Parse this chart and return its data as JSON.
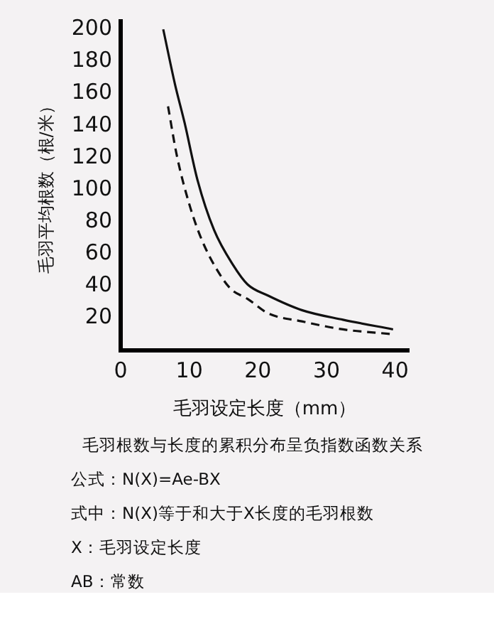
{
  "chart_data": {
    "type": "line",
    "xlabel": "毛羽设定长度（mm）",
    "ylabel": "毛羽平均根数（根/米）",
    "xlim": [
      0,
      42
    ],
    "xticks": [
      0,
      10,
      20,
      30,
      40
    ],
    "ylim": [
      0,
      205
    ],
    "yticks": [
      20,
      40,
      60,
      80,
      100,
      120,
      140,
      160,
      180,
      200
    ],
    "grid": false,
    "legend": false,
    "marker": "none",
    "series": [
      {
        "color": "#111111",
        "line_style": "solid",
        "x": [
          6.2,
          7.9,
          9.3,
          11.2,
          13.6,
          16.4,
          18.5,
          21.5,
          26.4,
          32.4,
          39.7
        ],
        "values": [
          200,
          166,
          142,
          106,
          75,
          53,
          41,
          34,
          25,
          19,
          13
        ]
      },
      {
        "color": "#111111",
        "line_style": "dashed",
        "x": [
          6.9,
          8.2,
          10,
          11.8,
          14.2,
          16.1,
          18.5,
          21.5,
          26.4,
          32.4,
          39.7
        ],
        "values": [
          152,
          121,
          91,
          69,
          49,
          38,
          32,
          23,
          18,
          13,
          10
        ]
      }
    ],
    "annotations": [
      "毛羽根数与长度的累积分布呈负指数函数关系",
      "公式：N(X)=Ae-BX",
      "式中：N(X)等于和大于X长度的毛羽根数",
      "X：毛羽设定长度",
      "AB：常数"
    ]
  }
}
